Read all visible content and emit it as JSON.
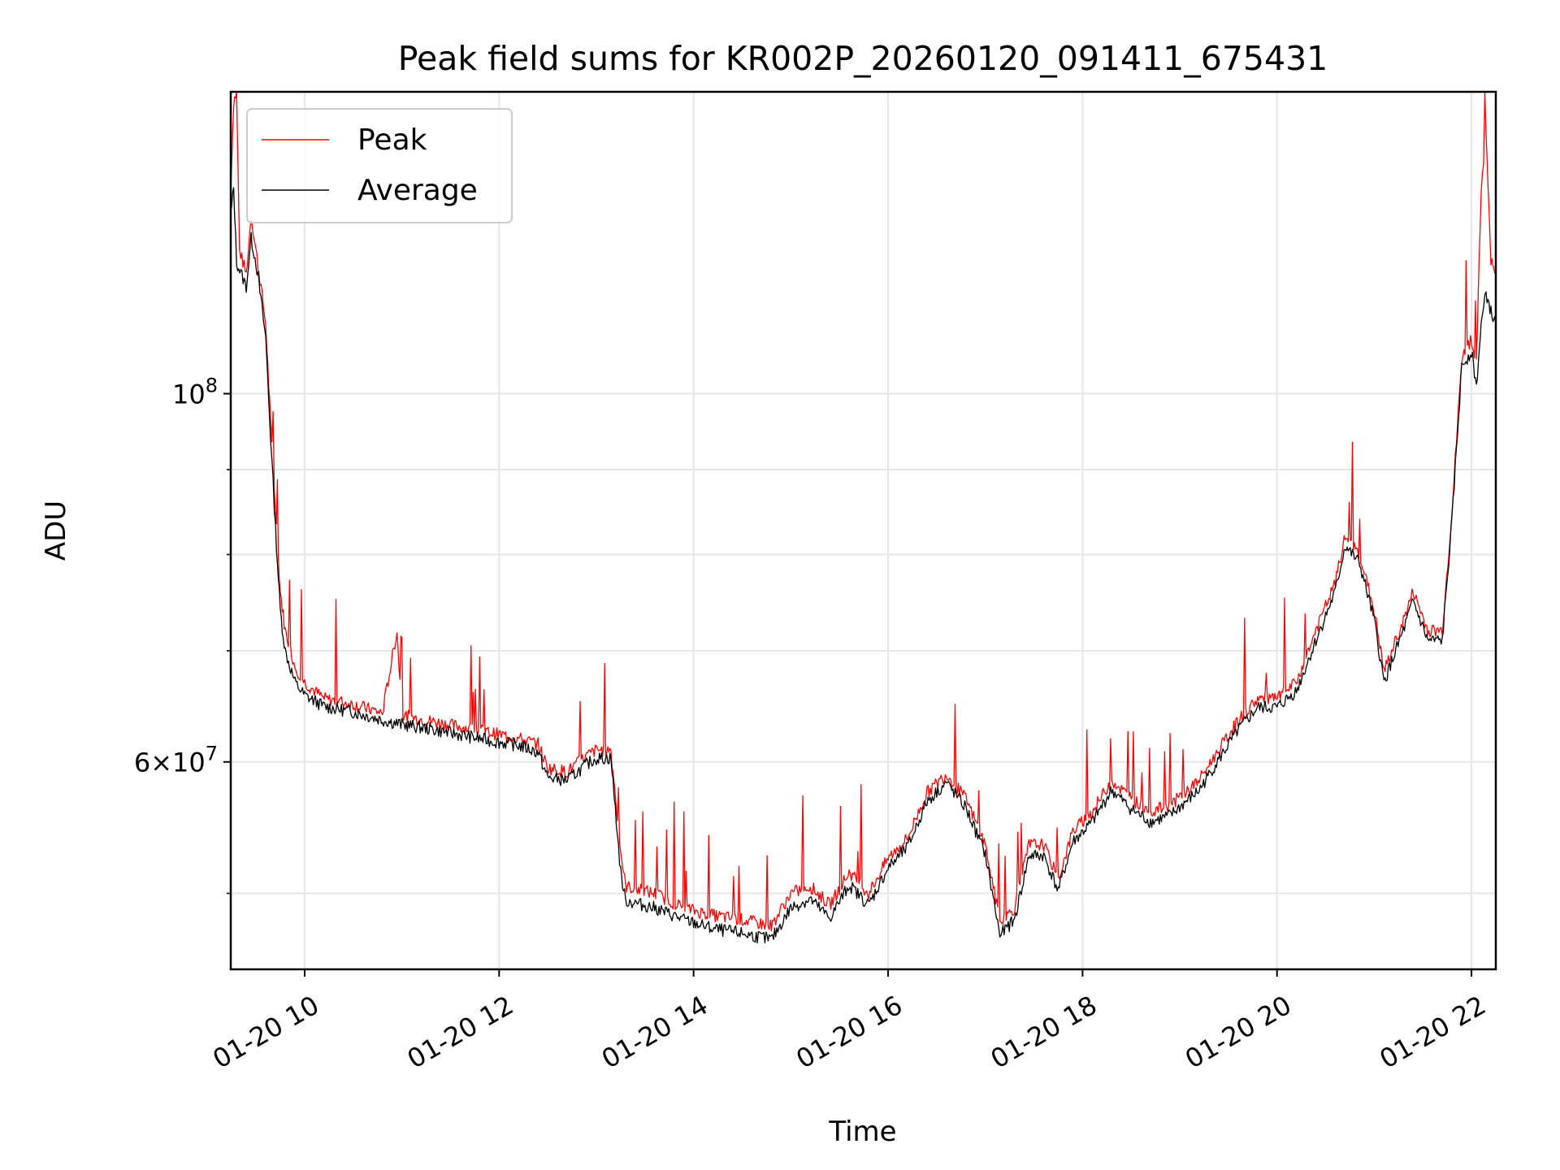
{
  "chart_data": {
    "type": "line",
    "title": "Peak field sums for KR002P_20260120_091411_675431",
    "xlabel": "Time",
    "ylabel": "ADU",
    "x_tick_labels": [
      "01-20 10",
      "01-20 12",
      "01-20 14",
      "01-20 16",
      "01-20 18",
      "01-20 20",
      "01-20 22"
    ],
    "y_tick_labels": [
      {
        "base": "6×10",
        "exp": "7",
        "value": 60000000
      },
      {
        "base": "10",
        "exp": "8",
        "value": 100000000
      }
    ],
    "y_scale": "log",
    "x_range_hours": [
      9.24,
      22.25
    ],
    "ylim": [
      45000000,
      152000000
    ],
    "grid": true,
    "legend_position": "top-left",
    "series": [
      {
        "name": "Peak",
        "color": "#ff0000",
        "points": [
          [
            9.24,
            133000000
          ],
          [
            9.27,
            150000000
          ],
          [
            9.3,
            152000000
          ],
          [
            9.33,
            122000000
          ],
          [
            9.4,
            118000000
          ],
          [
            9.45,
            128000000
          ],
          [
            9.5,
            122000000
          ],
          [
            9.55,
            116000000
          ],
          [
            9.6,
            110000000
          ],
          [
            9.65,
            96000000
          ],
          [
            9.7,
            85000000
          ],
          [
            9.75,
            76000000
          ],
          [
            9.8,
            72000000
          ],
          [
            9.9,
            68500000
          ],
          [
            10.0,
            67000000
          ],
          [
            10.2,
            65500000
          ],
          [
            10.5,
            65000000
          ],
          [
            10.8,
            64200000
          ],
          [
            10.95,
            72000000
          ],
          [
            11.0,
            64000000
          ],
          [
            11.3,
            63500000
          ],
          [
            11.6,
            63000000
          ],
          [
            11.9,
            62500000
          ],
          [
            12.2,
            62000000
          ],
          [
            12.4,
            61500000
          ],
          [
            12.5,
            59500000
          ],
          [
            12.7,
            59200000
          ],
          [
            12.9,
            60500000
          ],
          [
            13.0,
            61000000
          ],
          [
            13.15,
            61000000
          ],
          [
            13.25,
            53000000
          ],
          [
            13.3,
            50500000
          ],
          [
            13.6,
            50000000
          ],
          [
            13.9,
            49000000
          ],
          [
            14.2,
            48500000
          ],
          [
            14.5,
            48200000
          ],
          [
            14.8,
            47800000
          ],
          [
            15.0,
            50000000
          ],
          [
            15.2,
            50500000
          ],
          [
            15.4,
            49200000
          ],
          [
            15.6,
            51500000
          ],
          [
            15.8,
            50000000
          ],
          [
            16.0,
            52500000
          ],
          [
            16.2,
            54000000
          ],
          [
            16.4,
            57500000
          ],
          [
            16.6,
            59000000
          ],
          [
            16.8,
            57000000
          ],
          [
            17.0,
            53500000
          ],
          [
            17.15,
            48000000
          ],
          [
            17.3,
            49000000
          ],
          [
            17.45,
            53500000
          ],
          [
            17.6,
            53500000
          ],
          [
            17.75,
            51000000
          ],
          [
            17.9,
            54500000
          ],
          [
            18.1,
            56000000
          ],
          [
            18.3,
            58500000
          ],
          [
            18.5,
            57000000
          ],
          [
            18.7,
            56000000
          ],
          [
            18.9,
            56500000
          ],
          [
            19.2,
            58500000
          ],
          [
            19.4,
            61000000
          ],
          [
            19.6,
            63500000
          ],
          [
            19.8,
            65500000
          ],
          [
            20.0,
            65500000
          ],
          [
            20.2,
            67000000
          ],
          [
            20.4,
            72000000
          ],
          [
            20.6,
            77000000
          ],
          [
            20.7,
            82000000
          ],
          [
            20.85,
            80000000
          ],
          [
            21.0,
            74000000
          ],
          [
            21.1,
            68000000
          ],
          [
            21.3,
            73000000
          ],
          [
            21.4,
            76000000
          ],
          [
            21.55,
            72000000
          ],
          [
            21.7,
            72000000
          ],
          [
            21.8,
            85000000
          ],
          [
            21.9,
            105000000
          ],
          [
            22.0,
            108000000
          ],
          [
            22.05,
            104000000
          ],
          [
            22.1,
            133000000
          ],
          [
            22.15,
            143000000
          ],
          [
            22.2,
            120000000
          ],
          [
            22.25,
            118000000
          ]
        ]
      },
      {
        "name": "Average",
        "color": "#000000",
        "points": [
          [
            9.24,
            128000000
          ],
          [
            9.27,
            133000000
          ],
          [
            9.3,
            120000000
          ],
          [
            9.4,
            116000000
          ],
          [
            9.45,
            124000000
          ],
          [
            9.5,
            120000000
          ],
          [
            9.55,
            114000000
          ],
          [
            9.6,
            108000000
          ],
          [
            9.65,
            94000000
          ],
          [
            9.7,
            83000000
          ],
          [
            9.75,
            74000000
          ],
          [
            9.8,
            70000000
          ],
          [
            9.9,
            67000000
          ],
          [
            10.0,
            65800000
          ],
          [
            10.2,
            64800000
          ],
          [
            10.5,
            64300000
          ],
          [
            10.8,
            63600000
          ],
          [
            11.0,
            63200000
          ],
          [
            11.3,
            62800000
          ],
          [
            11.6,
            62300000
          ],
          [
            11.9,
            61800000
          ],
          [
            12.2,
            61400000
          ],
          [
            12.4,
            60800000
          ],
          [
            12.5,
            58700000
          ],
          [
            12.7,
            58500000
          ],
          [
            12.9,
            59800000
          ],
          [
            13.0,
            60300000
          ],
          [
            13.15,
            60300000
          ],
          [
            13.25,
            51500000
          ],
          [
            13.3,
            49500000
          ],
          [
            13.6,
            49000000
          ],
          [
            13.9,
            48200000
          ],
          [
            14.2,
            47600000
          ],
          [
            14.5,
            47300000
          ],
          [
            14.8,
            46900000
          ],
          [
            15.0,
            49000000
          ],
          [
            15.2,
            49600000
          ],
          [
            15.4,
            48300000
          ],
          [
            15.6,
            50600000
          ],
          [
            15.8,
            49200000
          ],
          [
            16.0,
            51800000
          ],
          [
            16.2,
            53300000
          ],
          [
            16.4,
            56800000
          ],
          [
            16.6,
            58300000
          ],
          [
            16.8,
            56300000
          ],
          [
            17.0,
            52800000
          ],
          [
            17.15,
            47200000
          ],
          [
            17.3,
            48200000
          ],
          [
            17.45,
            52700000
          ],
          [
            17.6,
            52700000
          ],
          [
            17.75,
            50200000
          ],
          [
            17.9,
            53700000
          ],
          [
            18.1,
            55200000
          ],
          [
            18.3,
            57700000
          ],
          [
            18.5,
            56200000
          ],
          [
            18.7,
            55200000
          ],
          [
            18.9,
            55700000
          ],
          [
            19.2,
            57700000
          ],
          [
            19.4,
            60200000
          ],
          [
            19.6,
            62700000
          ],
          [
            19.8,
            64700000
          ],
          [
            20.0,
            64700000
          ],
          [
            20.2,
            66200000
          ],
          [
            20.4,
            71000000
          ],
          [
            20.6,
            76000000
          ],
          [
            20.7,
            81000000
          ],
          [
            20.85,
            79000000
          ],
          [
            21.0,
            73000000
          ],
          [
            21.1,
            67000000
          ],
          [
            21.3,
            72000000
          ],
          [
            21.4,
            75000000
          ],
          [
            21.55,
            71000000
          ],
          [
            21.7,
            71000000
          ],
          [
            21.8,
            84000000
          ],
          [
            21.9,
            104000000
          ],
          [
            22.0,
            106000000
          ],
          [
            22.05,
            101000000
          ],
          [
            22.1,
            110000000
          ],
          [
            22.15,
            115000000
          ],
          [
            22.2,
            112000000
          ],
          [
            22.25,
            110000000
          ]
        ]
      }
    ]
  }
}
